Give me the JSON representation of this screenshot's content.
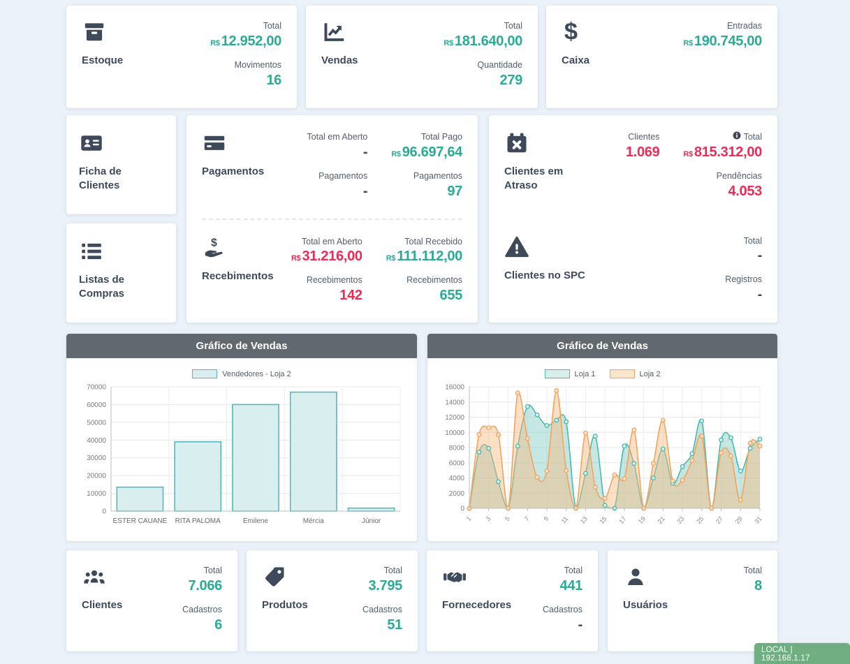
{
  "colors": {
    "background": "#eaf1f8",
    "card": "#ffffff",
    "teal_value": "#2aab96",
    "red_value": "#ee2b57",
    "dark_value": "#3e4a5a",
    "label_text": "#516070",
    "title_text": "#3d4a5c",
    "chart_header_bg": "#62686f",
    "badge_bg": "#6fae80"
  },
  "cards": {
    "estoque": {
      "title": "Estoque",
      "stats": [
        {
          "label": "Total",
          "currency": "R$",
          "value": "12.952,00"
        },
        {
          "label": "Movimentos",
          "value": "16"
        }
      ]
    },
    "vendas": {
      "title": "Vendas",
      "stats": [
        {
          "label": "Total",
          "currency": "R$",
          "value": "181.640,00"
        },
        {
          "label": "Quantidade",
          "value": "279"
        }
      ]
    },
    "caixa": {
      "title": "Caixa",
      "stats": [
        {
          "label": "Entradas",
          "currency": "R$",
          "value": "190.745,00"
        }
      ]
    },
    "ficha": {
      "title": "Ficha de Clientes"
    },
    "listas": {
      "title": "Listas de Compras"
    },
    "pagamentos": {
      "title": "Pagamentos",
      "col1": [
        {
          "label": "Total em Aberto",
          "value": "-"
        },
        {
          "label": "Pagamentos",
          "value": "-"
        }
      ],
      "col2": [
        {
          "label": "Total Pago",
          "currency": "R$",
          "value": "96.697,64"
        },
        {
          "label": "Pagamentos",
          "value": "97"
        }
      ]
    },
    "recebimentos": {
      "title": "Recebimentos",
      "col1": [
        {
          "label": "Total em Aberto",
          "currency": "R$",
          "value": "31.216,00"
        },
        {
          "label": "Recebimentos",
          "value": "142"
        }
      ],
      "col2": [
        {
          "label": "Total Recebido",
          "currency": "R$",
          "value": "111.112,00"
        },
        {
          "label": "Recebimentos",
          "value": "655"
        }
      ]
    },
    "atraso": {
      "title": "Clientes em Atraso",
      "col1": [
        {
          "label": "Clientes",
          "value": "1.069"
        }
      ],
      "col2": [
        {
          "label": "Total",
          "currency": "R$",
          "value": "815.312,00"
        },
        {
          "label": "Pendências",
          "value": "4.053"
        }
      ]
    },
    "spc": {
      "title": "Clientes no SPC",
      "col2": [
        {
          "label": "Total",
          "value": "-"
        },
        {
          "label": "Registros",
          "value": "-"
        }
      ]
    },
    "clientes": {
      "title": "Clientes",
      "stats": [
        {
          "label": "Total",
          "value": "7.066"
        },
        {
          "label": "Cadastros",
          "value": "6"
        }
      ]
    },
    "produtos": {
      "title": "Produtos",
      "stats": [
        {
          "label": "Total",
          "value": "3.795"
        },
        {
          "label": "Cadastros",
          "value": "51"
        }
      ]
    },
    "fornecedores": {
      "title": "Fornecedores",
      "stats": [
        {
          "label": "Total",
          "value": "441"
        },
        {
          "label": "Cadastros",
          "value": "-"
        }
      ]
    },
    "usuarios": {
      "title": "Usuários",
      "stats": [
        {
          "label": "Total",
          "value": "8"
        }
      ]
    }
  },
  "chart_data": [
    {
      "type": "bar",
      "title": "Gráfico de Vendas",
      "legend_label": "Vendedores - Loja 2",
      "legend_position": "top",
      "categories": [
        "ESTER CAUANE",
        "RITA PALOMA",
        "Emilene",
        "Mércia",
        "Júnior"
      ],
      "values": [
        13500,
        39000,
        60000,
        67000,
        1700
      ],
      "xlabel": "",
      "ylabel": "",
      "ylim": [
        0,
        70000
      ],
      "ytick": 10000,
      "grid": true,
      "bar_fill": "#d9efef",
      "bar_stroke": "#54b9bc"
    },
    {
      "type": "line",
      "title": "Gráfico de Vendas",
      "legend_position": "top",
      "x": [
        1,
        2,
        3,
        4,
        5,
        6,
        7,
        8,
        9,
        10,
        11,
        12,
        13,
        14,
        15,
        16,
        17,
        18,
        19,
        20,
        21,
        22,
        23,
        24,
        25,
        26,
        27,
        28,
        29,
        30,
        31
      ],
      "xticks": [
        1,
        3,
        5,
        7,
        9,
        11,
        13,
        15,
        17,
        19,
        21,
        23,
        25,
        27,
        29,
        31
      ],
      "xlabel": "",
      "ylabel": "",
      "ylim": [
        0,
        16000
      ],
      "ytick": 2000,
      "grid": true,
      "series": [
        {
          "name": "Loja 1",
          "color": "#4cb9ae",
          "fill": "rgba(128,203,196,0.45)",
          "marker_fill": "#d7eeea",
          "values": [
            0,
            7400,
            7900,
            3500,
            0,
            8200,
            13400,
            12300,
            10900,
            11600,
            11400,
            0,
            4600,
            9500,
            400,
            0,
            8200,
            5900,
            0,
            4000,
            7800,
            3300,
            5500,
            7200,
            11500,
            0,
            9000,
            9300,
            4900,
            7900,
            9100
          ]
        },
        {
          "name": "Loja 2",
          "color": "#f2a45f",
          "fill": "rgba(247,187,126,0.45)",
          "marker_fill": "#fbe6cc",
          "values": [
            0,
            9700,
            10600,
            9700,
            0,
            15200,
            9200,
            4100,
            4900,
            15500,
            5000,
            0,
            9900,
            2800,
            1300,
            4400,
            3900,
            10300,
            0,
            5900,
            11600,
            3600,
            3700,
            6300,
            9500,
            0,
            7300,
            6900,
            1100,
            8600,
            8200
          ]
        }
      ]
    }
  ],
  "badge": {
    "text": "LOCAL | 192.168.1.17"
  }
}
